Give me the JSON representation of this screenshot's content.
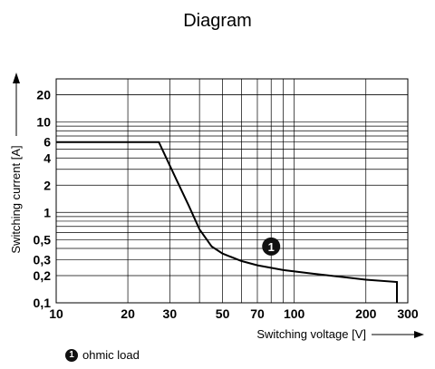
{
  "chart_data": {
    "type": "line",
    "title": "Diagram",
    "xlabel": "Switching voltage [V]",
    "ylabel": "Switching current [A]",
    "x_scale": "log",
    "y_scale": "log",
    "xlim": [
      10,
      300
    ],
    "ylim": [
      0.1,
      30
    ],
    "grid": true,
    "x_ticks": [
      10,
      20,
      30,
      50,
      70,
      100,
      200,
      300
    ],
    "x_tick_labels": [
      "10",
      "20",
      "30",
      "50",
      "70",
      "100",
      "200",
      "300"
    ],
    "y_ticks": [
      0.1,
      0.2,
      0.3,
      0.5,
      1,
      2,
      4,
      6,
      10,
      20
    ],
    "y_tick_labels": [
      "0,1",
      "0,2",
      "0,3",
      "0,5",
      "1",
      "2",
      "4",
      "6",
      "10",
      "20"
    ],
    "series": [
      {
        "annotation": "1",
        "x": [
          10,
          27,
          29,
          32,
          36,
          40,
          45,
          50,
          60,
          70,
          90,
          120,
          200,
          270,
          270
        ],
        "y": [
          6,
          6,
          4,
          2.3,
          1.2,
          0.65,
          0.42,
          0.35,
          0.29,
          0.26,
          0.23,
          0.21,
          0.18,
          0.17,
          0.1
        ]
      }
    ],
    "annotations": [
      {
        "label": "1",
        "x": 80,
        "y": 0.42
      }
    ],
    "legend": [
      {
        "marker": "1",
        "text": "ohmic load"
      }
    ],
    "legend_placement": "bottom-left"
  }
}
